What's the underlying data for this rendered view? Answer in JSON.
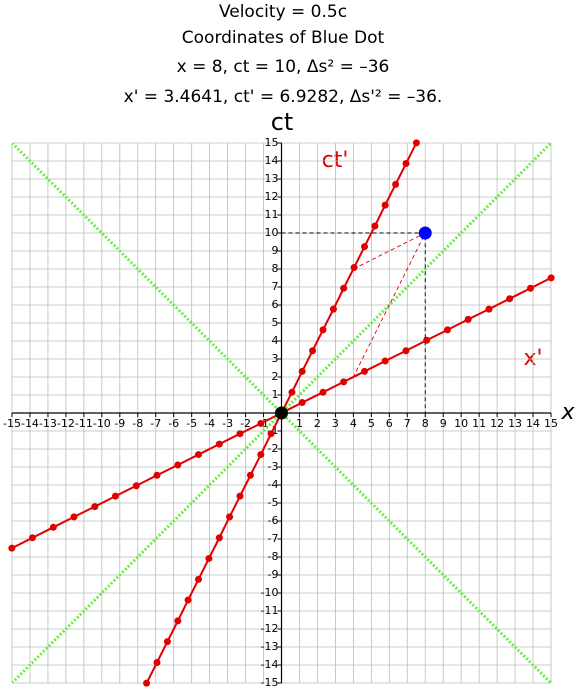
{
  "chart_data": {
    "type": "line",
    "title": "Velocity = 0.5c",
    "subtitle": [
      "Coordinates of Blue Dot",
      "x = 8, ct = 10, Δs² = –36",
      "x' = 3.4641, ct' = 6.9282, Δs'² = –36."
    ],
    "xlabel": "x",
    "ylabel": "ct",
    "xlim": [
      -15,
      15
    ],
    "ylim": [
      -15,
      15
    ],
    "xticks": [
      -15,
      -14,
      -13,
      -12,
      -11,
      -10,
      -9,
      -8,
      -7,
      -6,
      -5,
      -4,
      -3,
      -2,
      -1,
      1,
      2,
      3,
      4,
      5,
      6,
      7,
      8,
      9,
      10,
      11,
      12,
      13,
      14,
      15
    ],
    "yticks": [
      -15,
      -14,
      -13,
      -12,
      -11,
      -10,
      -9,
      -8,
      -7,
      -6,
      -5,
      -4,
      -3,
      -2,
      -1,
      1,
      2,
      3,
      4,
      5,
      6,
      7,
      8,
      9,
      10,
      11,
      12,
      13,
      14,
      15
    ],
    "grid": true,
    "series": [
      {
        "name": "ct'",
        "color": "#e00000",
        "style": "solid",
        "marker_size": 3.5,
        "x": [
          -7.51,
          -6.93,
          -6.35,
          -5.77,
          -5.2,
          -4.62,
          -4.04,
          -3.46,
          -2.89,
          -2.31,
          -1.73,
          -1.15,
          -0.58,
          0,
          0.58,
          1.15,
          1.73,
          2.31,
          2.89,
          3.46,
          4.04,
          4.62,
          5.2,
          5.77,
          6.35,
          6.93,
          7.51
        ],
        "values": [
          -15.01,
          -13.86,
          -12.7,
          -11.55,
          -10.39,
          -9.24,
          -8.08,
          -6.93,
          -5.77,
          -4.62,
          -3.46,
          -2.31,
          -1.15,
          0,
          1.15,
          2.31,
          3.46,
          4.62,
          5.77,
          6.93,
          8.08,
          9.24,
          10.39,
          11.55,
          12.7,
          13.86,
          15.01
        ]
      },
      {
        "name": "x'",
        "color": "#e00000",
        "style": "solid",
        "marker_size": 3.5,
        "x": [
          -15.01,
          -13.86,
          -12.7,
          -11.55,
          -10.39,
          -9.24,
          -8.08,
          -6.93,
          -5.77,
          -4.62,
          -3.46,
          -2.31,
          -1.15,
          0,
          1.15,
          2.31,
          3.46,
          4.62,
          5.77,
          6.93,
          8.08,
          9.24,
          10.39,
          11.55,
          12.7,
          13.86,
          15.01
        ],
        "values": [
          -7.51,
          -6.93,
          -6.35,
          -5.77,
          -5.2,
          -4.62,
          -4.04,
          -3.46,
          -2.89,
          -2.31,
          -1.73,
          -1.15,
          -0.58,
          0,
          0.58,
          1.15,
          1.73,
          2.31,
          2.89,
          3.46,
          4.04,
          4.62,
          5.2,
          5.77,
          6.35,
          6.93,
          7.51
        ]
      },
      {
        "color": "#66ee44",
        "style": "dotted",
        "marker_size": 0,
        "x": [
          -15,
          15
        ],
        "values": [
          -15,
          15
        ]
      },
      {
        "color": "#66ee44",
        "style": "dotted",
        "marker_size": 0,
        "x": [
          -15,
          15
        ],
        "values": [
          15,
          -15
        ]
      },
      {
        "color": "#000000",
        "style": "dashed",
        "marker_size": 0,
        "x": [
          0,
          8,
          8
        ],
        "values": [
          10,
          10,
          0
        ]
      },
      {
        "color": "#e00000",
        "style": "dashed",
        "marker_size": 0,
        "x": [
          4,
          8,
          4
        ],
        "values": [
          8,
          10,
          2
        ]
      },
      {
        "color": "#0000ff",
        "style": "none",
        "marker_size": 6.5,
        "x": [
          8
        ],
        "values": [
          10
        ]
      },
      {
        "color": "#000000",
        "style": "none",
        "marker_size": 6.5,
        "x": [
          0
        ],
        "values": [
          0
        ]
      }
    ]
  }
}
